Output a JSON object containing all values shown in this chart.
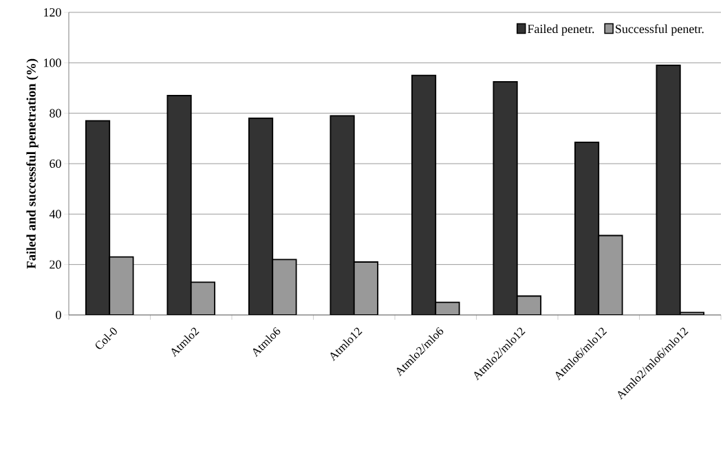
{
  "chart_data": {
    "type": "bar",
    "ylabel": "Failed and successful penetration (%)",
    "categories": [
      "Col-0",
      "Atmlo2",
      "Atmlo6",
      "Atmlo12",
      "Atmlo2/mlo6",
      "Atmlo2/mlo12",
      "Atmlo6/mlo12",
      "Atmlo2/mlo6/mlo12"
    ],
    "series": [
      {
        "name": "Failed penetr.",
        "color": "#333333",
        "values": [
          77,
          87,
          78,
          79,
          95,
          92.5,
          68.5,
          99
        ]
      },
      {
        "name": "Successful penetr.",
        "color": "#999999",
        "values": [
          23,
          13,
          22,
          21,
          5,
          7.5,
          31.5,
          1
        ]
      }
    ],
    "ylim": [
      0,
      120
    ],
    "yticks": [
      0,
      20,
      40,
      60,
      80,
      100,
      120
    ],
    "grid": "y",
    "legend": "top right"
  }
}
